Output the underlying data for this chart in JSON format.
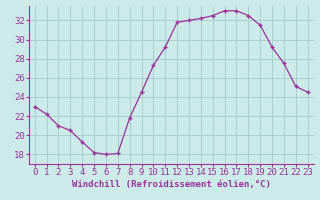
{
  "x": [
    0,
    1,
    2,
    3,
    4,
    5,
    6,
    7,
    8,
    9,
    10,
    11,
    12,
    13,
    14,
    15,
    16,
    17,
    18,
    19,
    20,
    21,
    22,
    23
  ],
  "y": [
    23.0,
    22.2,
    21.0,
    20.5,
    19.3,
    18.2,
    18.0,
    18.1,
    21.8,
    24.5,
    27.3,
    29.2,
    31.8,
    32.0,
    32.2,
    32.5,
    33.0,
    33.0,
    32.5,
    31.5,
    29.2,
    27.5,
    25.1,
    24.5
  ],
  "line_color": "#993399",
  "marker": "+",
  "bg_color": "#cceae7",
  "grid_color": "#aacfcc",
  "xlabel": "Windchill (Refroidissement éolien,°C)",
  "ylim": [
    17.0,
    33.5
  ],
  "yticks": [
    18,
    20,
    22,
    24,
    26,
    28,
    30,
    32
  ],
  "xticks": [
    0,
    1,
    2,
    3,
    4,
    5,
    6,
    7,
    8,
    9,
    10,
    11,
    12,
    13,
    14,
    15,
    16,
    17,
    18,
    19,
    20,
    21,
    22,
    23
  ],
  "tick_color": "#993399",
  "label_color": "#993399",
  "font_size": 6.5,
  "xlabel_fontsize": 6.5,
  "linewidth": 0.9,
  "markersize": 3.5
}
